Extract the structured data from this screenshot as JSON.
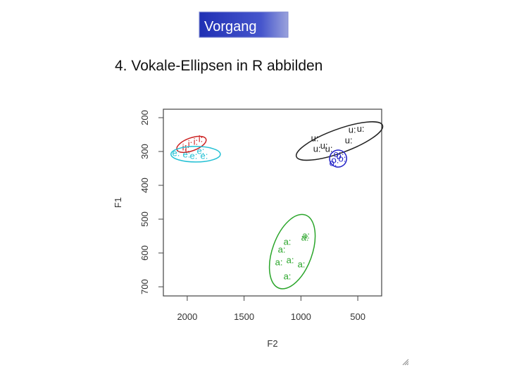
{
  "header": {
    "button": "Vorgang",
    "title": "4. Vokale-Ellipsen in R abbilden"
  },
  "chart_data": {
    "type": "scatter",
    "xlabel": "F2",
    "ylabel": "F1",
    "xlim": [
      2210,
      290
    ],
    "ylim": [
      727,
      175
    ],
    "xticks": [
      2000,
      1500,
      1000,
      500
    ],
    "yticks": [
      200,
      300,
      400,
      500,
      600,
      700
    ],
    "series": [
      {
        "name": "a:",
        "color": "#2aa52a",
        "x": [
          1120,
          955,
          965,
          1169,
          1095,
          1194,
          996,
          1120
        ],
        "y": [
          569,
          550,
          556,
          592,
          623,
          629,
          635,
          671
        ],
        "ellipse": {
          "cx": 1076,
          "cy": 596,
          "rx": 174,
          "ry": 115,
          "angle": 20
        }
      },
      {
        "name": "u:",
        "color": "#222222",
        "x": [
          878,
          797,
          859,
          549,
          475,
          580,
          754
        ],
        "y": [
          263,
          285,
          294,
          238,
          235,
          269,
          294
        ],
        "ellipse": {
          "cx": 661,
          "cy": 269,
          "rx": 403,
          "ry": 35,
          "angle": -20
        }
      },
      {
        "name": "o:",
        "color": "#2323c8",
        "x": [
          699,
          655,
          717,
          637,
          680
        ],
        "y": [
          327,
          315,
          336,
          323,
          310
        ],
        "ellipse": {
          "cx": 673,
          "cy": 321,
          "rx": 75,
          "ry": 25,
          "angle": -30
        }
      },
      {
        "name": "i:",
        "color": "#cc2222",
        "x": [
          2025,
          1975,
          1926,
          1882,
          2000
        ],
        "y": [
          290,
          279,
          273,
          265,
          294
        ],
        "ellipse": {
          "cx": 1963,
          "cy": 279,
          "rx": 136,
          "ry": 19,
          "angle": -20
        }
      },
      {
        "name": "e:",
        "color": "#22c0d4",
        "x": [
          2099,
          1944,
          1882,
          2006,
          1851
        ],
        "y": [
          306,
          315,
          300,
          311,
          315
        ],
        "ellipse": {
          "cx": 1926,
          "cy": 308,
          "rx": 217,
          "ry": 23,
          "angle": 0
        }
      }
    ]
  }
}
